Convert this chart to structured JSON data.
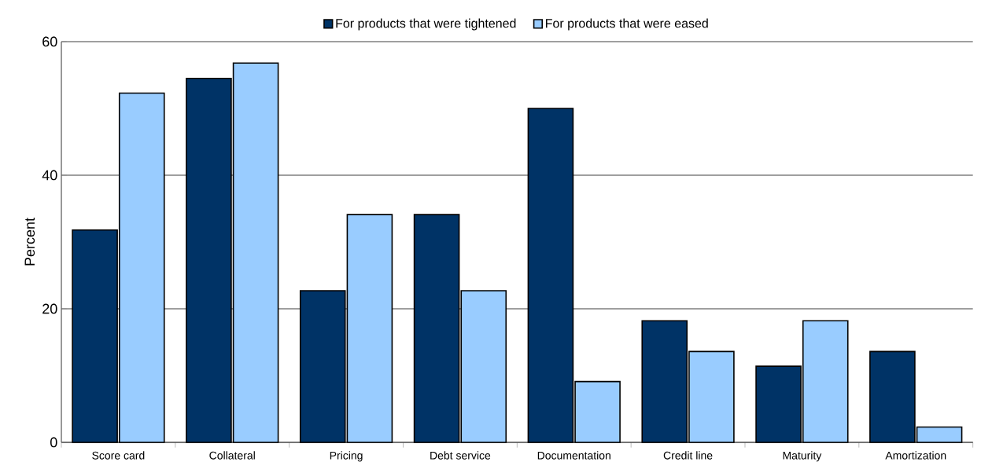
{
  "chart_data": {
    "type": "bar",
    "ylabel": "Percent",
    "categories": [
      "Score card",
      "Collateral",
      "Pricing",
      "Debt service",
      "Documentation",
      "Credit line",
      "Maturity",
      "Amortization"
    ],
    "series": [
      {
        "name": "For products that were tightened",
        "color": "#003366",
        "values": [
          31.8,
          54.5,
          22.7,
          34.1,
          50.0,
          18.2,
          11.4,
          13.6
        ]
      },
      {
        "name": "For products that were eased",
        "color": "#99ccff",
        "values": [
          52.3,
          56.8,
          34.1,
          22.7,
          9.1,
          13.6,
          18.2,
          2.3
        ]
      }
    ],
    "ylim": [
      0,
      60
    ],
    "yticks": [
      0,
      20,
      40,
      60
    ],
    "grid": "y",
    "legend": "top"
  }
}
